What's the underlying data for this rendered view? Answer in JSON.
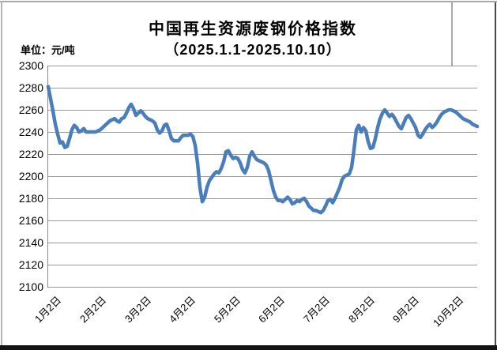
{
  "header": {
    "title": "中国再生资源废钢价格指数",
    "subtitle": "（2025.1.1-2025.10.10）",
    "unit_label": "单位：元/吨"
  },
  "colors": {
    "line": "#4a7ebb",
    "gridline": "#9a9a9a",
    "axis": "#8a8a8a",
    "text": "#000000",
    "frame_bottom": "#141414",
    "frame_edge": "#a9a9a9"
  },
  "chart_data": {
    "type": "line",
    "title": "中国再生资源废钢价格指数",
    "subtitle": "（2025.1.1-2025.10.10）",
    "ylabel": "元/吨",
    "ylim": [
      2100,
      2300
    ],
    "grid": true,
    "legend": false,
    "y_ticks": [
      2300,
      2280,
      2260,
      2240,
      2220,
      2200,
      2180,
      2160,
      2140,
      2120,
      2100
    ],
    "x_ticks": [
      {
        "label": "1月2日",
        "f": 0.004
      },
      {
        "label": "2月2日",
        "f": 0.109
      },
      {
        "label": "3月2日",
        "f": 0.214
      },
      {
        "label": "4月2日",
        "f": 0.317
      },
      {
        "label": "5月2日",
        "f": 0.422
      },
      {
        "label": "6月2日",
        "f": 0.525
      },
      {
        "label": "7月2日",
        "f": 0.63
      },
      {
        "label": "8月2日",
        "f": 0.735
      },
      {
        "label": "9月2日",
        "f": 0.838
      },
      {
        "label": "10月2日",
        "f": 0.943
      }
    ],
    "x_range_note": "daily values from 2025-01-02 to 2025-10-10, evenly spaced",
    "values": [
      2281,
      2270,
      2259,
      2247,
      2238,
      2230,
      2231,
      2226,
      2227,
      2234,
      2242,
      2246,
      2244,
      2240,
      2241,
      2243,
      2240,
      2240,
      2240,
      2240,
      2240,
      2241,
      2242,
      2244,
      2246,
      2248,
      2250,
      2251,
      2252,
      2250,
      2249,
      2252,
      2253,
      2257,
      2262,
      2265,
      2261,
      2255,
      2257,
      2259,
      2257,
      2254,
      2252,
      2251,
      2250,
      2248,
      2242,
      2239,
      2241,
      2246,
      2247,
      2241,
      2234,
      2232,
      2232,
      2232,
      2235,
      2237,
      2237,
      2237,
      2238,
      2236,
      2228,
      2212,
      2190,
      2177,
      2181,
      2190,
      2196,
      2199,
      2202,
      2204,
      2203,
      2207,
      2213,
      2222,
      2223,
      2219,
      2216,
      2217,
      2216,
      2212,
      2206,
      2203,
      2208,
      2218,
      2222,
      2218,
      2215,
      2214,
      2213,
      2212,
      2210,
      2205,
      2196,
      2187,
      2181,
      2178,
      2178,
      2177,
      2179,
      2181,
      2179,
      2175,
      2176,
      2178,
      2177,
      2179,
      2180,
      2177,
      2173,
      2171,
      2169,
      2169,
      2168,
      2167,
      2169,
      2173,
      2178,
      2179,
      2176,
      2180,
      2185,
      2190,
      2197,
      2200,
      2201,
      2202,
      2208,
      2224,
      2242,
      2246,
      2240,
      2244,
      2241,
      2231,
      2225,
      2226,
      2234,
      2244,
      2252,
      2257,
      2260,
      2257,
      2254,
      2256,
      2253,
      2249,
      2245,
      2243,
      2248,
      2253,
      2255,
      2252,
      2248,
      2244,
      2237,
      2235,
      2238,
      2242,
      2245,
      2247,
      2244,
      2246,
      2249,
      2253,
      2256,
      2258,
      2259,
      2260,
      2260,
      2259,
      2258,
      2256,
      2254,
      2252,
      2251,
      2250,
      2249,
      2247,
      2246,
      2245
    ]
  }
}
